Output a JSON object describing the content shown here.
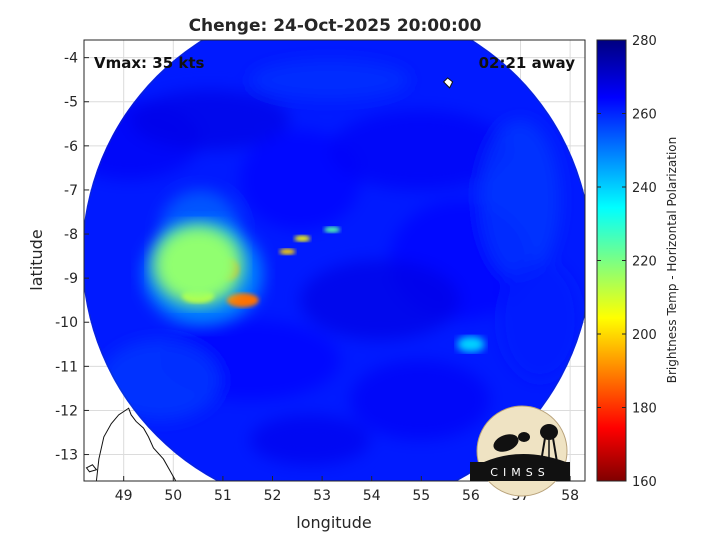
{
  "chart_data": {
    "type": "heatmap",
    "title": "Chenge: 24-Oct-2025 20:00:00",
    "xlabel": "longitude",
    "ylabel": "latitude",
    "xlim": [
      48.2,
      58.3
    ],
    "ylim": [
      -13.6,
      -3.6
    ],
    "xticks": [
      49,
      50,
      51,
      52,
      53,
      54,
      55,
      56,
      57,
      58
    ],
    "yticks": [
      -4,
      -5,
      -6,
      -7,
      -8,
      -9,
      -10,
      -11,
      -12,
      -13
    ],
    "xtick_labels": [
      "49",
      "50",
      "51",
      "52",
      "53",
      "54",
      "55",
      "56",
      "57",
      "58"
    ],
    "ytick_labels": [
      "-4",
      "-5",
      "-6",
      "-7",
      "-8",
      "-9",
      "-10",
      "-11",
      "-12",
      "-13"
    ],
    "grid": true,
    "annotations": {
      "vmax": "Vmax: 35 kts",
      "time_offset": "02:21 away"
    },
    "swath": {
      "center_lon": 53.3,
      "center_lat": -8.5,
      "shape": "circular",
      "outside_value": "no data"
    },
    "background_brightness_temp": 262,
    "features": [
      {
        "lon": 50.5,
        "lat": -8.7,
        "brightness_temp": 218,
        "kind": "convective band"
      },
      {
        "lon": 51.1,
        "lat": -8.8,
        "brightness_temp": 185,
        "kind": "cold core"
      },
      {
        "lon": 51.4,
        "lat": -9.5,
        "brightness_temp": 188,
        "kind": "rain band"
      },
      {
        "lon": 50.5,
        "lat": -9.4,
        "brightness_temp": 205,
        "kind": "rain band"
      },
      {
        "lon": 52.6,
        "lat": -8.1,
        "brightness_temp": 205,
        "kind": "outer band"
      },
      {
        "lon": 52.3,
        "lat": -8.4,
        "brightness_temp": 200,
        "kind": "outer band"
      },
      {
        "lon": 53.2,
        "lat": -7.9,
        "brightness_temp": 225,
        "kind": "outer band"
      },
      {
        "lon": 56.0,
        "lat": -10.5,
        "brightness_temp": 240,
        "kind": "scattered cells"
      }
    ],
    "colorbar": {
      "label": "Brightness Temp - Horizontal Polarization",
      "range": [
        160,
        280
      ],
      "ticks": [
        160,
        180,
        200,
        220,
        240,
        260,
        280
      ],
      "tick_labels": [
        "160",
        "180",
        "200",
        "220",
        "240",
        "260",
        "280"
      ],
      "colormap": "jet"
    },
    "logo_text": "CIMSS"
  }
}
